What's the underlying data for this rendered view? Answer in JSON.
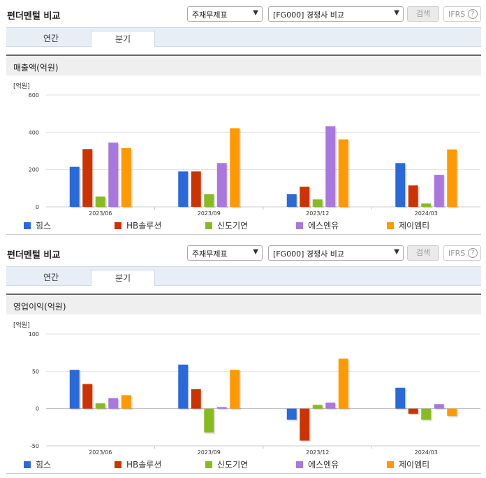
{
  "colors": [
    "#2a6ad8",
    "#cc3300",
    "#88bb22",
    "#aa77dd",
    "#ff9900"
  ],
  "companies": [
    "힘스",
    "HB솔루션",
    "신도기연",
    "에스엔유",
    "제이엠티"
  ],
  "panels": [
    {
      "header": {
        "title": "펀더멘털 비교",
        "select1": "주재무제표",
        "select2": "[FG000] 경쟁사 비교",
        "search_label": "검색",
        "ifrs_label": "IFRS",
        "help_label": "?"
      },
      "tabs": [
        {
          "label": "연간",
          "active": false
        },
        {
          "label": "분기",
          "active": true
        }
      ],
      "metric_label": "매출액(억원)",
      "unit_label": "[억원]"
    },
    {
      "header": {
        "title": "펀더멘털 비교",
        "select1": "주재무제표",
        "select2": "[FG000] 경쟁사 비교",
        "search_label": "검색",
        "ifrs_label": "IFRS",
        "help_label": "?"
      },
      "tabs": [
        {
          "label": "연간",
          "active": false
        },
        {
          "label": "분기",
          "active": true
        }
      ],
      "metric_label": "영업이익(억원)",
      "unit_label": "[억원]"
    }
  ],
  "chart_data": [
    {
      "type": "bar",
      "title": "",
      "ylabel": "[억원]",
      "categories": [
        "2023/06",
        "2023/09",
        "2023/12",
        "2024/03"
      ],
      "ylim": [
        0,
        600
      ],
      "yticks": [
        0,
        200,
        400,
        600
      ],
      "series": [
        {
          "name": "힘스",
          "values": [
            215,
            190,
            68,
            235
          ]
        },
        {
          "name": "HB솔루션",
          "values": [
            310,
            190,
            108,
            115
          ]
        },
        {
          "name": "신도기연",
          "values": [
            55,
            68,
            40,
            18
          ]
        },
        {
          "name": "에스엔유",
          "values": [
            345,
            235,
            433,
            172
          ]
        },
        {
          "name": "제이엠티",
          "values": [
            315,
            422,
            362,
            308
          ]
        }
      ],
      "legend_position": "bottom",
      "grid": true
    },
    {
      "type": "bar",
      "title": "",
      "ylabel": "[억원]",
      "categories": [
        "2023/06",
        "2023/09",
        "2023/12",
        "2024/03"
      ],
      "ylim": [
        -50,
        100
      ],
      "yticks": [
        -50,
        0,
        50,
        100
      ],
      "series": [
        {
          "name": "힘스",
          "values": [
            52,
            59,
            -15,
            28
          ]
        },
        {
          "name": "HB솔루션",
          "values": [
            33,
            26,
            -43,
            -7
          ]
        },
        {
          "name": "신도기연",
          "values": [
            7,
            -32,
            5,
            -15
          ]
        },
        {
          "name": "에스엔유",
          "values": [
            14,
            2,
            8,
            6
          ]
        },
        {
          "name": "제이엠티",
          "values": [
            18,
            52,
            67,
            -10
          ]
        }
      ],
      "legend_position": "bottom",
      "grid": true
    }
  ]
}
